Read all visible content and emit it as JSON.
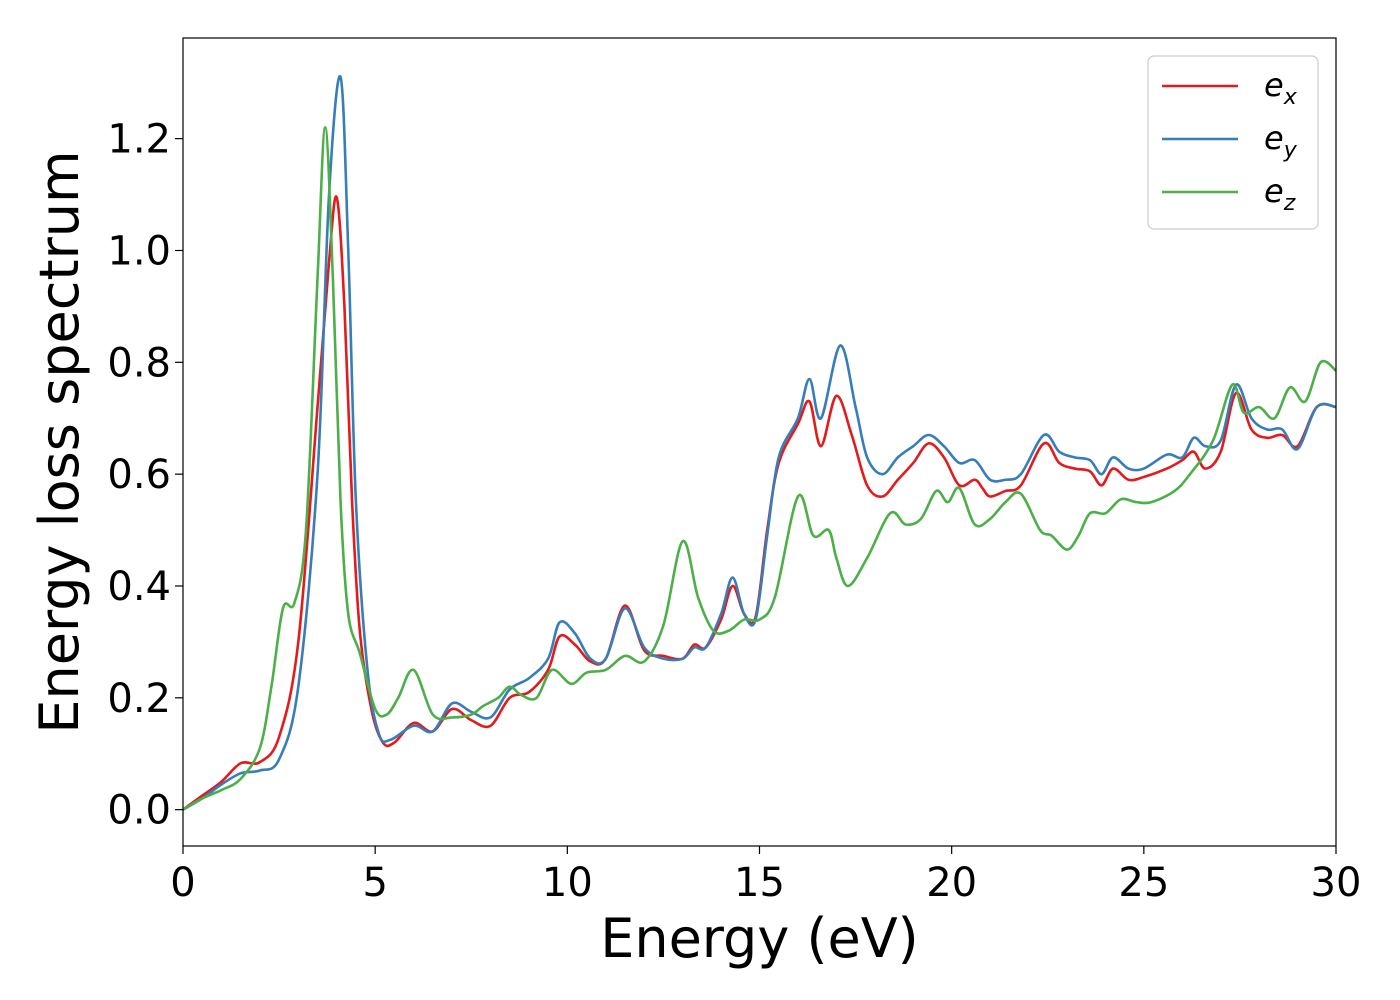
{
  "chart_data": {
    "type": "line",
    "title": "",
    "xlabel": "Energy (eV)",
    "ylabel": "Energy loss spectrum",
    "xlim": [
      0,
      30
    ],
    "ylim": [
      -0.065,
      1.38
    ],
    "xticks": [
      0,
      5,
      10,
      15,
      20,
      25,
      30
    ],
    "xtick_labels": [
      "0",
      "5",
      "10",
      "15",
      "20",
      "25",
      "30"
    ],
    "yticks": [
      0.0,
      0.2,
      0.4,
      0.6,
      0.8,
      1.0,
      1.2
    ],
    "ytick_labels": [
      "0.0",
      "0.2",
      "0.4",
      "0.6",
      "0.8",
      "1.0",
      "1.2"
    ],
    "grid": false,
    "legend_position": "top-right",
    "series": [
      {
        "name": "e",
        "subscript": "x",
        "color": "#e41a1c",
        "points": [
          [
            0,
            0
          ],
          [
            0.5,
            0.025
          ],
          [
            1.0,
            0.05
          ],
          [
            1.5,
            0.083
          ],
          [
            2.0,
            0.085
          ],
          [
            2.5,
            0.13
          ],
          [
            3.0,
            0.3
          ],
          [
            3.5,
            0.72
          ],
          [
            3.8,
            0.98
          ],
          [
            4.0,
            1.095
          ],
          [
            4.2,
            0.9
          ],
          [
            4.4,
            0.55
          ],
          [
            4.6,
            0.32
          ],
          [
            4.9,
            0.18
          ],
          [
            5.2,
            0.12
          ],
          [
            5.5,
            0.12
          ],
          [
            6.0,
            0.155
          ],
          [
            6.5,
            0.14
          ],
          [
            7.0,
            0.18
          ],
          [
            7.5,
            0.16
          ],
          [
            8.0,
            0.15
          ],
          [
            8.5,
            0.2
          ],
          [
            9.0,
            0.21
          ],
          [
            9.5,
            0.25
          ],
          [
            9.8,
            0.31
          ],
          [
            10.2,
            0.295
          ],
          [
            10.6,
            0.265
          ],
          [
            11.0,
            0.27
          ],
          [
            11.5,
            0.365
          ],
          [
            12.0,
            0.285
          ],
          [
            12.5,
            0.275
          ],
          [
            13.0,
            0.27
          ],
          [
            13.3,
            0.295
          ],
          [
            13.6,
            0.29
          ],
          [
            14.0,
            0.34
          ],
          [
            14.3,
            0.4
          ],
          [
            14.6,
            0.35
          ],
          [
            14.9,
            0.345
          ],
          [
            15.2,
            0.5
          ],
          [
            15.5,
            0.62
          ],
          [
            16.0,
            0.69
          ],
          [
            16.3,
            0.73
          ],
          [
            16.6,
            0.65
          ],
          [
            17.0,
            0.74
          ],
          [
            17.4,
            0.67
          ],
          [
            17.8,
            0.58
          ],
          [
            18.2,
            0.56
          ],
          [
            18.6,
            0.59
          ],
          [
            19.0,
            0.62
          ],
          [
            19.4,
            0.655
          ],
          [
            19.8,
            0.63
          ],
          [
            20.2,
            0.58
          ],
          [
            20.6,
            0.59
          ],
          [
            20.8,
            0.575
          ],
          [
            21.0,
            0.56
          ],
          [
            21.4,
            0.57
          ],
          [
            21.8,
            0.58
          ],
          [
            22.4,
            0.655
          ],
          [
            22.8,
            0.62
          ],
          [
            23.2,
            0.61
          ],
          [
            23.6,
            0.605
          ],
          [
            23.9,
            0.58
          ],
          [
            24.2,
            0.61
          ],
          [
            24.6,
            0.59
          ],
          [
            25.0,
            0.595
          ],
          [
            25.6,
            0.61
          ],
          [
            26.0,
            0.625
          ],
          [
            26.3,
            0.64
          ],
          [
            26.6,
            0.61
          ],
          [
            27.0,
            0.64
          ],
          [
            27.4,
            0.745
          ],
          [
            27.8,
            0.68
          ],
          [
            28.2,
            0.665
          ],
          [
            28.6,
            0.67
          ],
          [
            29.0,
            0.65
          ],
          [
            29.5,
            0.72
          ],
          [
            30,
            0.72
          ]
        ]
      },
      {
        "name": "e",
        "subscript": "y",
        "color": "#377eb8",
        "points": [
          [
            0,
            0
          ],
          [
            0.5,
            0.02
          ],
          [
            1.0,
            0.045
          ],
          [
            1.5,
            0.065
          ],
          [
            2.0,
            0.07
          ],
          [
            2.5,
            0.09
          ],
          [
            3.0,
            0.22
          ],
          [
            3.5,
            0.6
          ],
          [
            3.8,
            1.1
          ],
          [
            4.1,
            1.31
          ],
          [
            4.3,
            1.0
          ],
          [
            4.5,
            0.55
          ],
          [
            4.8,
            0.25
          ],
          [
            5.1,
            0.135
          ],
          [
            5.4,
            0.125
          ],
          [
            6.0,
            0.15
          ],
          [
            6.5,
            0.14
          ],
          [
            7.0,
            0.19
          ],
          [
            7.5,
            0.175
          ],
          [
            8.0,
            0.165
          ],
          [
            8.5,
            0.215
          ],
          [
            9.0,
            0.235
          ],
          [
            9.5,
            0.27
          ],
          [
            9.8,
            0.335
          ],
          [
            10.2,
            0.315
          ],
          [
            10.6,
            0.27
          ],
          [
            11.0,
            0.27
          ],
          [
            11.5,
            0.36
          ],
          [
            12.0,
            0.29
          ],
          [
            12.5,
            0.27
          ],
          [
            13.0,
            0.27
          ],
          [
            13.3,
            0.29
          ],
          [
            13.6,
            0.29
          ],
          [
            14.0,
            0.35
          ],
          [
            14.3,
            0.415
          ],
          [
            14.6,
            0.35
          ],
          [
            14.9,
            0.34
          ],
          [
            15.2,
            0.49
          ],
          [
            15.5,
            0.63
          ],
          [
            16.0,
            0.7
          ],
          [
            16.3,
            0.77
          ],
          [
            16.6,
            0.7
          ],
          [
            17.1,
            0.83
          ],
          [
            17.5,
            0.72
          ],
          [
            17.8,
            0.63
          ],
          [
            18.2,
            0.6
          ],
          [
            18.6,
            0.63
          ],
          [
            19.0,
            0.65
          ],
          [
            19.4,
            0.67
          ],
          [
            19.8,
            0.65
          ],
          [
            20.2,
            0.62
          ],
          [
            20.6,
            0.625
          ],
          [
            21.0,
            0.59
          ],
          [
            21.4,
            0.59
          ],
          [
            21.8,
            0.6
          ],
          [
            22.4,
            0.67
          ],
          [
            22.8,
            0.64
          ],
          [
            23.2,
            0.63
          ],
          [
            23.6,
            0.625
          ],
          [
            23.9,
            0.6
          ],
          [
            24.2,
            0.63
          ],
          [
            24.6,
            0.61
          ],
          [
            25.0,
            0.61
          ],
          [
            25.6,
            0.635
          ],
          [
            26.0,
            0.63
          ],
          [
            26.3,
            0.665
          ],
          [
            26.6,
            0.65
          ],
          [
            27.0,
            0.66
          ],
          [
            27.4,
            0.76
          ],
          [
            27.8,
            0.7
          ],
          [
            28.2,
            0.68
          ],
          [
            28.6,
            0.68
          ],
          [
            29.0,
            0.645
          ],
          [
            29.5,
            0.72
          ],
          [
            30,
            0.72
          ]
        ]
      },
      {
        "name": "e",
        "subscript": "z",
        "color": "#4daf4a",
        "points": [
          [
            0,
            0
          ],
          [
            0.5,
            0.02
          ],
          [
            1.0,
            0.035
          ],
          [
            1.5,
            0.055
          ],
          [
            2.0,
            0.11
          ],
          [
            2.3,
            0.22
          ],
          [
            2.6,
            0.36
          ],
          [
            2.9,
            0.37
          ],
          [
            3.2,
            0.5
          ],
          [
            3.5,
            0.95
          ],
          [
            3.7,
            1.22
          ],
          [
            3.9,
            0.95
          ],
          [
            4.1,
            0.55
          ],
          [
            4.3,
            0.35
          ],
          [
            4.6,
            0.28
          ],
          [
            5.0,
            0.18
          ],
          [
            5.3,
            0.17
          ],
          [
            5.6,
            0.2
          ],
          [
            6.0,
            0.25
          ],
          [
            6.5,
            0.17
          ],
          [
            7.0,
            0.165
          ],
          [
            7.5,
            0.17
          ],
          [
            7.8,
            0.185
          ],
          [
            8.2,
            0.2
          ],
          [
            8.5,
            0.22
          ],
          [
            8.8,
            0.205
          ],
          [
            9.2,
            0.2
          ],
          [
            9.6,
            0.25
          ],
          [
            10.1,
            0.225
          ],
          [
            10.5,
            0.245
          ],
          [
            11.0,
            0.25
          ],
          [
            11.5,
            0.275
          ],
          [
            12.0,
            0.265
          ],
          [
            12.5,
            0.33
          ],
          [
            13.0,
            0.48
          ],
          [
            13.4,
            0.38
          ],
          [
            13.8,
            0.32
          ],
          [
            14.2,
            0.32
          ],
          [
            14.6,
            0.34
          ],
          [
            15.0,
            0.34
          ],
          [
            15.4,
            0.38
          ],
          [
            16.0,
            0.56
          ],
          [
            16.4,
            0.49
          ],
          [
            16.8,
            0.5
          ],
          [
            17.0,
            0.45
          ],
          [
            17.3,
            0.4
          ],
          [
            17.8,
            0.45
          ],
          [
            18.4,
            0.53
          ],
          [
            18.8,
            0.51
          ],
          [
            19.2,
            0.52
          ],
          [
            19.6,
            0.57
          ],
          [
            19.9,
            0.55
          ],
          [
            20.2,
            0.575
          ],
          [
            20.6,
            0.51
          ],
          [
            21.0,
            0.52
          ],
          [
            21.4,
            0.55
          ],
          [
            21.8,
            0.565
          ],
          [
            22.3,
            0.5
          ],
          [
            22.6,
            0.49
          ],
          [
            23.0,
            0.465
          ],
          [
            23.3,
            0.49
          ],
          [
            23.6,
            0.53
          ],
          [
            24.0,
            0.53
          ],
          [
            24.4,
            0.555
          ],
          [
            24.8,
            0.55
          ],
          [
            25.2,
            0.55
          ],
          [
            25.8,
            0.57
          ],
          [
            26.2,
            0.6
          ],
          [
            26.8,
            0.66
          ],
          [
            27.3,
            0.76
          ],
          [
            27.6,
            0.71
          ],
          [
            28.0,
            0.72
          ],
          [
            28.4,
            0.7
          ],
          [
            28.8,
            0.755
          ],
          [
            29.2,
            0.73
          ],
          [
            29.6,
            0.8
          ],
          [
            30,
            0.785
          ]
        ]
      }
    ]
  }
}
